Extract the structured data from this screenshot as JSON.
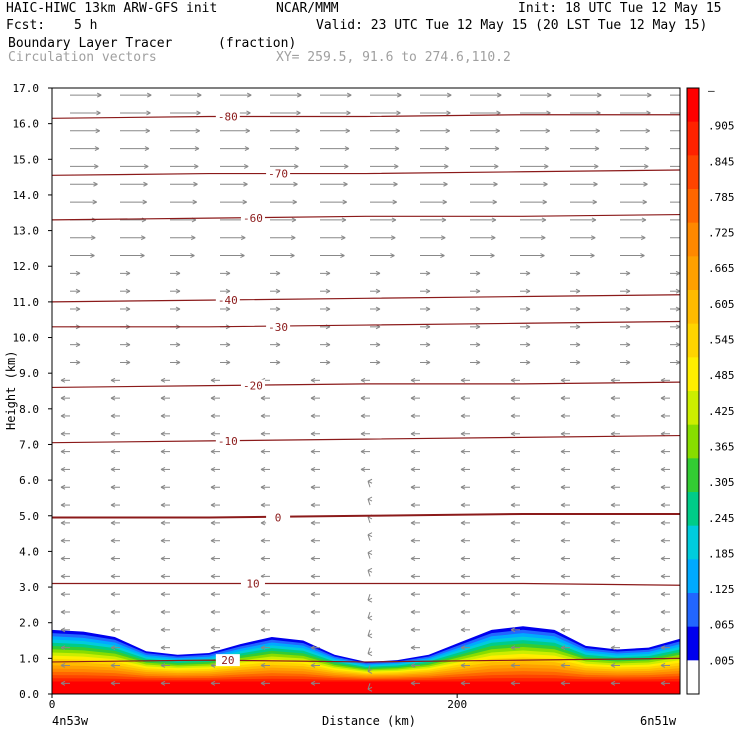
{
  "header": {
    "model": "HAIC-HIWC 13km ARW-GFS init",
    "org": "NCAR/MMM",
    "init": "Init: 18 UTC Tue 12 May 15",
    "fcst_label": "Fcst:",
    "fcst_value": "5 h",
    "valid": "Valid: 23 UTC Tue 12 May 15 (20 LST Tue 12 May 15)",
    "field1": "Boundary Layer Tracer",
    "field1_units": "(fraction)",
    "field2": "Circulation vectors",
    "xy": "XY= 259.5, 91.6 to 274.6,110.2"
  },
  "chart_data": {
    "type": "cross-section",
    "xlabel": "Distance (km)",
    "ylabel": "Height (km)",
    "xlim": [
      0,
      310
    ],
    "ylim": [
      0,
      17
    ],
    "x_ticks": [
      0,
      200
    ],
    "y_ticks": [
      "0.0",
      "1.0",
      "2.0",
      "3.0",
      "4.0",
      "5.0",
      "6.0",
      "7.0",
      "8.0",
      "9.0",
      "10.0",
      "11.0",
      "12.0",
      "13.0",
      "14.0",
      "15.0",
      "16.0",
      "17.0"
    ],
    "x_endpoint_labels": [
      "4n53w",
      "6n51w"
    ],
    "colorbar": {
      "labels": [
        "–",
        ".905",
        ".845",
        ".785",
        ".725",
        ".665",
        ".605",
        ".545",
        ".485",
        ".425",
        ".365",
        ".305",
        ".245",
        ".185",
        ".125",
        ".065",
        ".005"
      ],
      "colors": [
        "#ff0000",
        "#ff2200",
        "#ff4400",
        "#ff6600",
        "#ff8800",
        "#ffa000",
        "#ffbb00",
        "#ffd400",
        "#ffee00",
        "#ccee00",
        "#88dd00",
        "#33cc33",
        "#00cc88",
        "#00ccdd",
        "#00aaff",
        "#2266ff",
        "#0000ee",
        "#ffffff"
      ]
    },
    "temperature_contours": [
      {
        "label": "20",
        "heights": [
          0.9,
          0.95,
          0.9,
          0.95,
          1.0
        ]
      },
      {
        "label": "10",
        "heights": [
          3.1,
          3.1,
          3.1,
          3.1,
          3.05
        ]
      },
      {
        "label": "0",
        "heights": [
          4.95,
          4.95,
          5.0,
          5.05,
          5.05
        ]
      },
      {
        "label": "-10",
        "heights": [
          7.05,
          7.1,
          7.15,
          7.2,
          7.25
        ]
      },
      {
        "label": "-20",
        "heights": [
          8.6,
          8.65,
          8.7,
          8.7,
          8.75
        ]
      },
      {
        "label": "-30",
        "heights": [
          10.3,
          10.3,
          10.35,
          10.4,
          10.45
        ]
      },
      {
        "label": "-40",
        "heights": [
          11.0,
          11.05,
          11.1,
          11.15,
          11.2
        ]
      },
      {
        "label": "-60",
        "heights": [
          13.3,
          13.35,
          13.4,
          13.4,
          13.45
        ]
      },
      {
        "label": "-70",
        "heights": [
          14.55,
          14.6,
          14.6,
          14.65,
          14.7
        ]
      },
      {
        "label": "-80",
        "heights": [
          16.15,
          16.2,
          16.2,
          16.25,
          16.25
        ]
      }
    ],
    "boundary_layer_top_km": [
      1.8,
      1.75,
      1.6,
      1.2,
      1.1,
      1.15,
      1.4,
      1.6,
      1.5,
      1.1,
      0.9,
      0.95,
      1.1,
      1.45,
      1.8,
      1.9,
      1.8,
      1.35,
      1.25,
      1.3,
      1.55
    ]
  }
}
